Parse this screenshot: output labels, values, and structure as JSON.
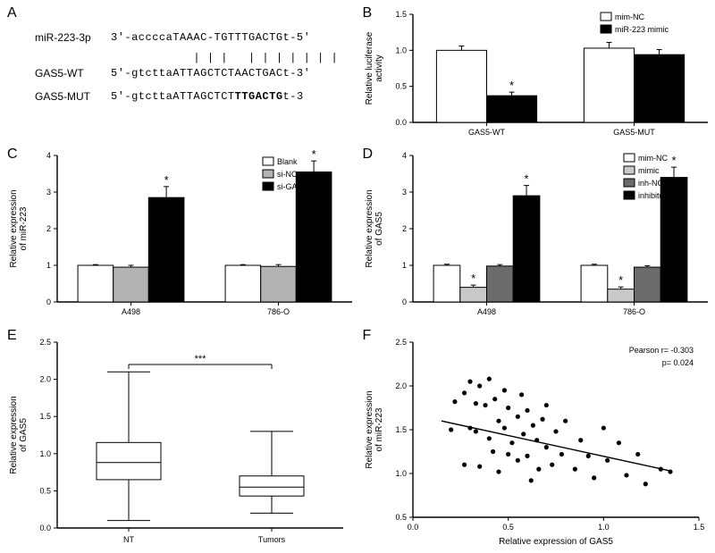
{
  "panel_A": {
    "label": "A",
    "rows": [
      {
        "label": "miR-223-3p",
        "seq": "3'-accccaTAAAC-TGTTTGACTGt-5'"
      },
      {
        "label": "GAS5-WT",
        "seq": "5'-gtcttaATTAGCTCTAACTGACt-3'"
      },
      {
        "label": "GAS5-MUT",
        "seq": "5'-gtcttaATTAGCTCTTTGACTGt-3"
      }
    ],
    "alignment": "            | | |   | | | | | | |"
  },
  "panel_B": {
    "label": "B",
    "chart_type": "bar",
    "ylabel": "Relative luciferase\nactivity",
    "ylim": [
      0,
      1.5
    ],
    "ytick_step": 0.5,
    "categories": [
      "GAS5-WT",
      "GAS5-MUT"
    ],
    "series": [
      {
        "name": "mim-NC",
        "color": "#ffffff",
        "values": [
          1.0,
          1.03
        ],
        "err": [
          0.06,
          0.08
        ]
      },
      {
        "name": "miR-223 mimic",
        "color": "#000000",
        "values": [
          0.37,
          0.94
        ],
        "err": [
          0.05,
          0.07
        ]
      }
    ],
    "markers": [
      {
        "group": 0,
        "series": 1,
        "symbol": "*"
      }
    ],
    "bar_width": 0.34,
    "text_color": "#000000",
    "grid": false
  },
  "panel_C": {
    "label": "C",
    "chart_type": "bar",
    "ylabel": "Relative expression\nof miR-223",
    "ylim": [
      0,
      4
    ],
    "ytick_step": 1,
    "categories": [
      "A498",
      "786-O"
    ],
    "series": [
      {
        "name": "Blank",
        "color": "#ffffff",
        "values": [
          1.0,
          1.0
        ],
        "err": [
          0.02,
          0.02
        ]
      },
      {
        "name": "si-NC",
        "color": "#b3b3b3",
        "values": [
          0.95,
          0.97
        ],
        "err": [
          0.05,
          0.05
        ]
      },
      {
        "name": "si-GAS5",
        "color": "#000000",
        "values": [
          2.85,
          3.55
        ],
        "err": [
          0.3,
          0.3
        ]
      }
    ],
    "markers": [
      {
        "group": 0,
        "series": 2,
        "symbol": "*"
      },
      {
        "group": 1,
        "series": 2,
        "symbol": "*"
      }
    ],
    "bar_width": 0.24
  },
  "panel_D": {
    "label": "D",
    "chart_type": "bar",
    "ylabel": "Relative expression\nof GAS5",
    "ylim": [
      0,
      4
    ],
    "ytick_step": 1,
    "categories": [
      "A498",
      "786-O"
    ],
    "series": [
      {
        "name": "mim-NC",
        "color": "#ffffff",
        "values": [
          1.0,
          1.0
        ],
        "err": [
          0.03,
          0.03
        ]
      },
      {
        "name": "mimic",
        "color": "#c9c9c9",
        "values": [
          0.4,
          0.35
        ],
        "err": [
          0.06,
          0.06
        ]
      },
      {
        "name": "inh-NC",
        "color": "#6b6b6b",
        "values": [
          0.98,
          0.95
        ],
        "err": [
          0.04,
          0.04
        ]
      },
      {
        "name": "inhibitor",
        "color": "#000000",
        "values": [
          2.9,
          3.4
        ],
        "err": [
          0.28,
          0.28
        ]
      }
    ],
    "markers": [
      {
        "group": 0,
        "series": 1,
        "symbol": "*"
      },
      {
        "group": 0,
        "series": 3,
        "symbol": "*"
      },
      {
        "group": 1,
        "series": 1,
        "symbol": "*"
      },
      {
        "group": 1,
        "series": 3,
        "symbol": "*"
      }
    ],
    "bar_width": 0.18
  },
  "panel_E": {
    "label": "E",
    "chart_type": "boxplot",
    "ylabel": "Relative expression\nof GAS5",
    "ylim": [
      0,
      2.5
    ],
    "ytick_step": 0.5,
    "categories": [
      "NT",
      "Tumors"
    ],
    "boxes": [
      {
        "min": 0.1,
        "q1": 0.65,
        "med": 0.88,
        "q3": 1.15,
        "max": 2.1
      },
      {
        "min": 0.2,
        "q1": 0.43,
        "med": 0.55,
        "q3": 0.7,
        "max": 1.3
      }
    ],
    "sig_label": "***",
    "box_color": "#ffffff",
    "line_color": "#000000"
  },
  "panel_F": {
    "label": "F",
    "chart_type": "scatter",
    "ylabel": "Relative expression\nof miR-223",
    "xlabel": "Relative expression of GAS5",
    "ylim": [
      0.5,
      2.5
    ],
    "ytick_step": 0.5,
    "xlim": [
      0.0,
      1.5
    ],
    "xtick_step": 0.5,
    "annotation_r": "Pearson r= -0.303",
    "annotation_p": "p= 0.024",
    "fit_line": {
      "x1": 0.15,
      "y1": 1.6,
      "x2": 1.35,
      "y2": 1.03
    },
    "marker_color": "#000000",
    "marker_size": 2.6,
    "points": [
      [
        0.2,
        1.5
      ],
      [
        0.22,
        1.82
      ],
      [
        0.27,
        1.1
      ],
      [
        0.27,
        1.92
      ],
      [
        0.3,
        1.52
      ],
      [
        0.3,
        2.05
      ],
      [
        0.33,
        1.48
      ],
      [
        0.33,
        1.8
      ],
      [
        0.35,
        2.0
      ],
      [
        0.35,
        1.08
      ],
      [
        0.38,
        1.78
      ],
      [
        0.4,
        1.4
      ],
      [
        0.4,
        2.08
      ],
      [
        0.42,
        1.25
      ],
      [
        0.43,
        1.85
      ],
      [
        0.45,
        1.6
      ],
      [
        0.45,
        1.02
      ],
      [
        0.48,
        1.95
      ],
      [
        0.48,
        1.52
      ],
      [
        0.5,
        1.22
      ],
      [
        0.5,
        1.75
      ],
      [
        0.52,
        1.35
      ],
      [
        0.55,
        1.65
      ],
      [
        0.55,
        1.15
      ],
      [
        0.57,
        1.9
      ],
      [
        0.58,
        1.45
      ],
      [
        0.6,
        1.72
      ],
      [
        0.6,
        1.2
      ],
      [
        0.62,
        0.92
      ],
      [
        0.63,
        1.55
      ],
      [
        0.65,
        1.38
      ],
      [
        0.66,
        1.05
      ],
      [
        0.68,
        1.62
      ],
      [
        0.7,
        1.3
      ],
      [
        0.7,
        1.78
      ],
      [
        0.73,
        1.1
      ],
      [
        0.75,
        1.48
      ],
      [
        0.78,
        1.22
      ],
      [
        0.8,
        1.6
      ],
      [
        0.85,
        1.05
      ],
      [
        0.88,
        1.38
      ],
      [
        0.92,
        1.2
      ],
      [
        0.95,
        0.95
      ],
      [
        1.0,
        1.52
      ],
      [
        1.02,
        1.15
      ],
      [
        1.08,
        1.35
      ],
      [
        1.12,
        0.98
      ],
      [
        1.18,
        1.22
      ],
      [
        1.22,
        0.88
      ],
      [
        1.3,
        1.05
      ],
      [
        1.35,
        1.02
      ]
    ]
  }
}
